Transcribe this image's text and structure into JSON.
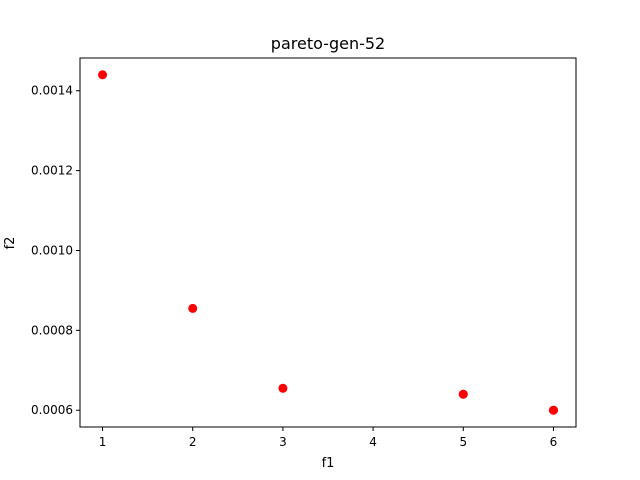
{
  "chart_data": {
    "type": "scatter",
    "title": "pareto-gen-52",
    "xlabel": "f1",
    "ylabel": "f2",
    "xlim": [
      0.75,
      6.25
    ],
    "ylim": [
      0.000558,
      0.001482
    ],
    "x_ticks": [
      1,
      2,
      3,
      4,
      5,
      6
    ],
    "x_tick_labels": [
      "1",
      "2",
      "3",
      "4",
      "5",
      "6"
    ],
    "y_ticks": [
      0.0006,
      0.0008,
      0.001,
      0.0012,
      0.0014
    ],
    "y_tick_labels": [
      "0.0006",
      "0.0008",
      "0.0010",
      "0.0012",
      "0.0014"
    ],
    "grid": false,
    "legend": "none",
    "series": [
      {
        "color": "#ff0000",
        "points": [
          {
            "x": 1,
            "y": 0.00144
          },
          {
            "x": 2,
            "y": 0.000855
          },
          {
            "x": 3,
            "y": 0.000655
          },
          {
            "x": 5,
            "y": 0.00064
          },
          {
            "x": 5,
            "y": 0.00064
          },
          {
            "x": 6,
            "y": 0.0006
          },
          {
            "x": 6,
            "y": 0.0006
          }
        ]
      }
    ]
  }
}
